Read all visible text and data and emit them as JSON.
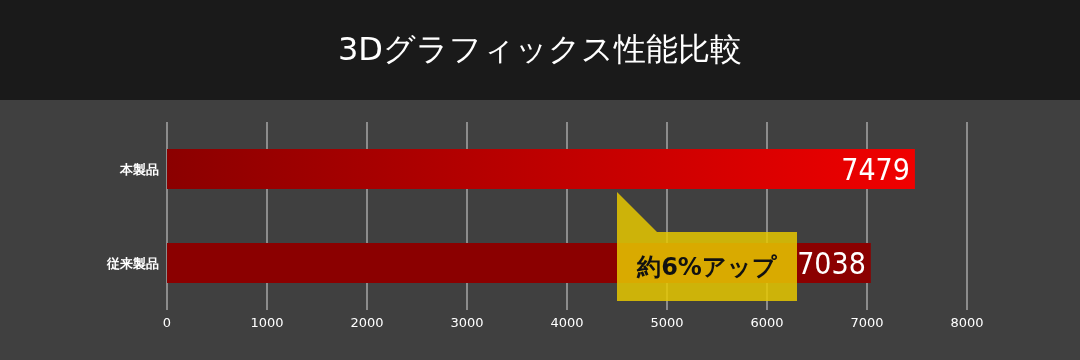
{
  "chart_data": {
    "type": "bar",
    "orientation": "horizontal",
    "title": "3Dグラフィックス性能比較",
    "categories": [
      "本製品",
      "従来製品"
    ],
    "values": [
      7479,
      7038
    ],
    "colors": [
      "#f00000",
      "#8b0000"
    ],
    "xlim": [
      0,
      8000
    ],
    "xticks": [
      0,
      1000,
      2000,
      3000,
      4000,
      5000,
      6000,
      7000,
      8000
    ],
    "grid": "x",
    "data_labels": true,
    "annotations": [
      "約6%アップ"
    ]
  }
}
